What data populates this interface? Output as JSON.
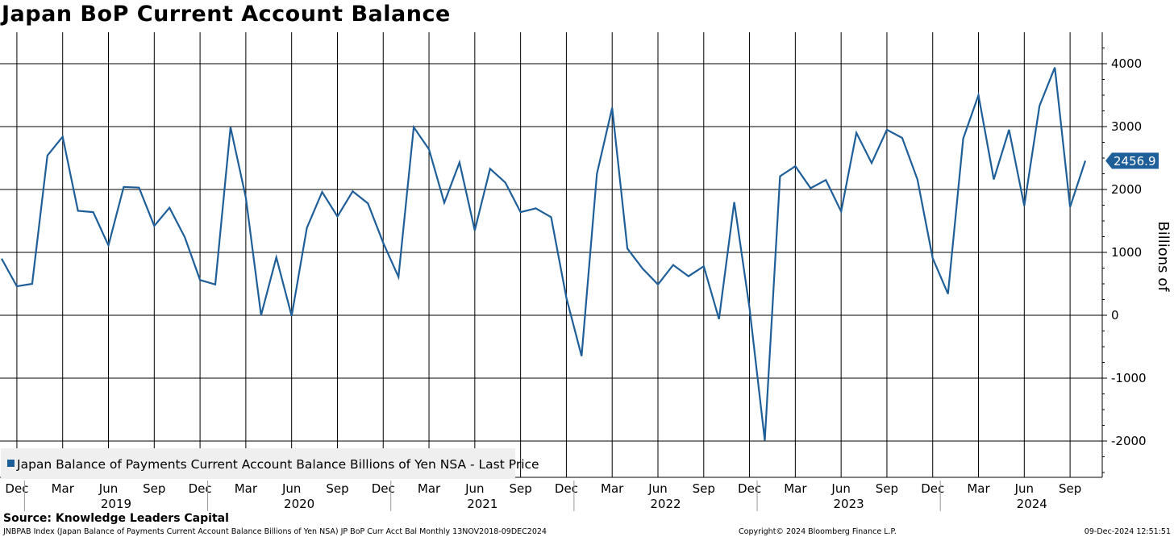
{
  "title": "Japan BoP Current Account Balance",
  "source": "Source: Knowledge Leaders Capital",
  "footer": {
    "left": "JNBPAB Index (Japan Balance of Payments Current Account Balance Billions of Yen NSA) JP BoP Curr Acct Bal  Monthly 13NOV2018-09DEC2024",
    "center": "Copyright© 2024 Bloomberg Finance L.P.",
    "right": "09-Dec-2024 12:51:51"
  },
  "colors": {
    "series": "#1f5f99",
    "grid": "#000000",
    "legend_bg": "#efefef"
  },
  "chart_data": {
    "type": "line",
    "title": "Japan BoP Current Account Balance",
    "ylabel": "Billions of",
    "ylim": [
      -2600,
      4500
    ],
    "yticks": [
      4000,
      3000,
      2000,
      1000,
      0,
      -1000,
      -2000
    ],
    "ytick_labels": [
      "4000",
      "3000",
      "2000",
      "1000",
      "0",
      "-1000",
      "-2000"
    ],
    "grid": true,
    "legend": "bottom-left",
    "last_value": 2456.9,
    "last_value_label": "2456.9",
    "month_ticks": [
      "Dec",
      "Mar",
      "Jun",
      "Sep",
      "Dec",
      "Mar",
      "Jun",
      "Sep",
      "Dec",
      "Mar",
      "Jun",
      "Sep",
      "Dec",
      "Mar",
      "Jun",
      "Sep",
      "Dec",
      "Mar",
      "Jun",
      "Sep",
      "Dec",
      "Mar",
      "Jun",
      "Sep"
    ],
    "year_labels": [
      "2019",
      "2020",
      "2021",
      "2022",
      "2023",
      "2024"
    ],
    "series": [
      {
        "name": "Japan Balance of Payments Current Account Balance Billions of Yen NSA - Last Price",
        "x": [
          "2018-11",
          "2018-12",
          "2019-01",
          "2019-02",
          "2019-03",
          "2019-04",
          "2019-05",
          "2019-06",
          "2019-07",
          "2019-08",
          "2019-09",
          "2019-10",
          "2019-11",
          "2019-12",
          "2020-01",
          "2020-02",
          "2020-03",
          "2020-04",
          "2020-05",
          "2020-06",
          "2020-07",
          "2020-08",
          "2020-09",
          "2020-10",
          "2020-11",
          "2020-12",
          "2021-01",
          "2021-02",
          "2021-03",
          "2021-04",
          "2021-05",
          "2021-06",
          "2021-07",
          "2021-08",
          "2021-09",
          "2021-10",
          "2021-11",
          "2021-12",
          "2022-01",
          "2022-02",
          "2022-03",
          "2022-04",
          "2022-05",
          "2022-06",
          "2022-07",
          "2022-08",
          "2022-09",
          "2022-10",
          "2022-11",
          "2022-12",
          "2023-01",
          "2023-02",
          "2023-03",
          "2023-04",
          "2023-05",
          "2023-06",
          "2023-07",
          "2023-08",
          "2023-09",
          "2023-10",
          "2023-11",
          "2023-12",
          "2024-01",
          "2024-02",
          "2024-03",
          "2024-04",
          "2024-05",
          "2024-06",
          "2024-07",
          "2024-08",
          "2024-09",
          "2024-10"
        ],
        "values": [
          900,
          460,
          500,
          2540,
          2840,
          1660,
          1640,
          1110,
          2040,
          2030,
          1420,
          1710,
          1240,
          560,
          490,
          2990,
          1870,
          0,
          920,
          -10,
          1390,
          1960,
          1570,
          1970,
          1780,
          1150,
          610,
          2990,
          2640,
          1790,
          2430,
          1350,
          2330,
          2110,
          1640,
          1700,
          1560,
          280,
          -650,
          2250,
          3300,
          1060,
          740,
          490,
          800,
          620,
          780,
          -60,
          1800,
          110,
          -1990,
          2210,
          2370,
          2020,
          2150,
          1650,
          2900,
          2420,
          2950,
          2820,
          2160,
          910,
          340,
          2810,
          3500,
          2160,
          2950,
          1740,
          3330,
          3940,
          1720,
          2456.9
        ]
      }
    ]
  }
}
